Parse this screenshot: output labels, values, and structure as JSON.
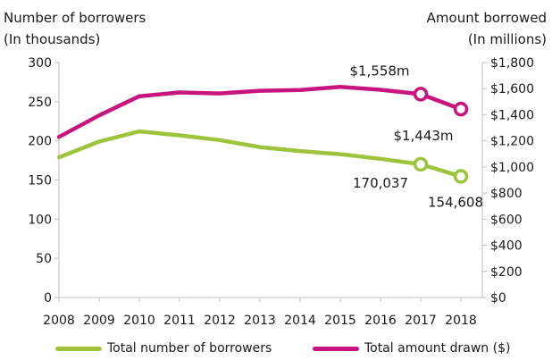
{
  "chart_data": {
    "type": "line",
    "x": [
      2008,
      2009,
      2010,
      2011,
      2012,
      2013,
      2014,
      2015,
      2016,
      2017,
      2018
    ],
    "left_axis": {
      "label_line1": "Number  of borrowers",
      "label_line2": "(In thousands)",
      "ylim": [
        0,
        300
      ],
      "ticks": [
        0,
        50,
        100,
        150,
        200,
        250,
        300
      ],
      "tick_labels": [
        "0",
        "50",
        "100",
        "150",
        "200",
        "250",
        "300"
      ]
    },
    "right_axis": {
      "label_line1": "Amount borrowed",
      "label_line2": "(In millions)",
      "ylim": [
        0,
        1800
      ],
      "ticks": [
        0,
        200,
        400,
        600,
        800,
        1000,
        1200,
        1400,
        1600,
        1800
      ],
      "tick_labels": [
        "$0",
        "$200",
        "$400",
        "$600",
        "$800",
        "$1,000",
        "$1,200",
        "$1,400",
        "$1,600",
        "$1,800"
      ]
    },
    "series": [
      {
        "name": "Total number of borrowers",
        "axis": "left",
        "color": "#9dc43c",
        "values": [
          179,
          199,
          212,
          207,
          201,
          192,
          187,
          183,
          177,
          170.037,
          154.608
        ]
      },
      {
        "name": "Total amount drawn ($)",
        "axis": "right",
        "color": "#c8157d",
        "values": [
          1230,
          1395,
          1542,
          1571,
          1563,
          1584,
          1589,
          1614,
          1591,
          1558,
          1443
        ]
      }
    ],
    "annotations": [
      {
        "text": "$1,558m",
        "series": 1,
        "point": 9
      },
      {
        "text": "$1,443m",
        "series": 1,
        "point": 10
      },
      {
        "text": "170,037",
        "series": 0,
        "point": 9
      },
      {
        "text": "154,608",
        "series": 0,
        "point": 10
      }
    ],
    "grid": false,
    "legend_position": "bottom"
  }
}
